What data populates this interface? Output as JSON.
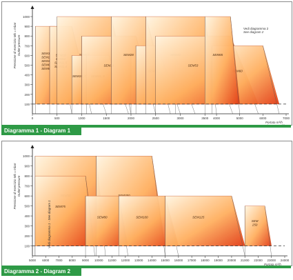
{
  "chart_data": [
    {
      "type": "area",
      "caption": "Diagramma 1 - Diagram 1",
      "ylabel_it": "Pressione di esercizio  Mb  =  mbar",
      "ylabel_en": "Outlet pressure",
      "xlabel_it": "Portata",
      "xlabel_en": "Flow rate",
      "xunit": "m³/h",
      "xlim": [
        0,
        7000
      ],
      "ylim": [
        0,
        1050
      ],
      "xticks": [
        0,
        500,
        1000,
        1500,
        2000,
        2500,
        3000,
        3500,
        4000,
        5000,
        6000,
        7000
      ],
      "yticks": [
        100,
        200,
        300,
        400,
        500,
        600,
        700,
        800,
        900,
        1000
      ],
      "reference_line": 100,
      "note_it": "Vedi diagramma 2",
      "note_en": "See diagram 2",
      "series": [
        {
          "name": "SEM1\nSEM2\nSEM4\nSEM6\nSEM8",
          "x_left": 60,
          "x_right": 480,
          "x_bottom": 800,
          "ymax": 900
        },
        {
          "name": "SEM10\nSEM11\nSEM11,5\nSEM11,6",
          "x_left": 350,
          "x_right": 800,
          "x_bottom": 1200,
          "ymax": 900
        },
        {
          "name": "SEM12",
          "x_left": 500,
          "x_right": 1600,
          "x_bottom": 2000,
          "ymax": 1000
        },
        {
          "name": "SEM15_7",
          "x_left": 800,
          "x_right": 1100,
          "x_bottom": 1500,
          "ymax": 600
        },
        {
          "name": "SEM15_9",
          "x_left": 1100,
          "x_right": 1550,
          "x_bottom": 1950,
          "ymax": 600
        },
        {
          "name": "SEM18",
          "x_left": 1000,
          "x_right": 2100,
          "x_bottom": 2500,
          "ymax": 800
        },
        {
          "name": "SEM20",
          "x_left": 2000,
          "x_right": 2600,
          "x_bottom": 3000,
          "ymax": 600
        },
        {
          "name": "SEM28",
          "x_left": 1600,
          "x_right": 2300,
          "x_bottom": 2800,
          "ymax": 1000
        },
        {
          "name": "SEM33",
          "x_left": 2100,
          "x_right": 2800,
          "x_bottom": 3300,
          "ymax": 700
        },
        {
          "name": "SEM41",
          "x_left": 2900,
          "x_right": 3800,
          "x_bottom": 4700,
          "ymax": 600
        },
        {
          "name": "SEM45",
          "x_left": 2300,
          "x_right": 3500,
          "x_bottom": 4000,
          "ymax": 1000
        },
        {
          "name": "SEM53",
          "x_left": 2500,
          "x_right": 4600,
          "x_bottom": 5800,
          "ymax": 800
        },
        {
          "name": "SEM60",
          "x_left": 3800,
          "x_right": 6000,
          "x_bottom": 6700,
          "ymax": 700
        },
        {
          "name": "SEM65",
          "x_left": 3500,
          "x_right": 4600,
          "x_bottom": 5000,
          "ymax": 1000
        }
      ]
    },
    {
      "type": "area",
      "caption": "Diagramma 2 - Diagram 2",
      "ylabel_it": "Pressione di esercizio  Mb  =  mbar",
      "ylabel_en": "Outlet pressure",
      "xlabel_it": "Portata",
      "xlabel_en": "Flow rate",
      "xunit": "m³/h",
      "xlim": [
        5000,
        24000
      ],
      "ylim": [
        0,
        1050
      ],
      "xticks": [
        5000,
        6000,
        7000,
        8000,
        9000,
        10000,
        11000,
        12000,
        13000,
        14000,
        15000,
        16000,
        17000,
        18000,
        19000,
        20000,
        21000,
        22000,
        23000,
        24000
      ],
      "yticks": [
        100,
        200,
        300,
        400,
        500,
        600,
        700,
        800,
        900,
        1000
      ],
      "reference_line": 100,
      "note_it": "Vedi diagramma 1",
      "note_en": "See diagram 1",
      "series": [
        {
          "name": "SEM50",
          "x_left": 5200,
          "x_right": 9800,
          "x_bottom": 10500,
          "ymax": 1000
        },
        {
          "name": "SEM350",
          "x_left": 9800,
          "x_right": 14000,
          "x_bottom": 15000,
          "ymax": 1000
        },
        {
          "name": "SEM75",
          "x_left": 5200,
          "x_right": 9000,
          "x_bottom": 9700,
          "ymax": 800
        },
        {
          "name": "SEM80",
          "x_left": 9000,
          "x_right": 11500,
          "x_bottom": 12200,
          "ymax": 600
        },
        {
          "name": "SEM100",
          "x_left": 11500,
          "x_right": 15000,
          "x_bottom": 16000,
          "ymax": 600
        },
        {
          "name": "SEM125",
          "x_left": 15000,
          "x_right": 20000,
          "x_bottom": 21000,
          "ymax": 600
        },
        {
          "name": "SEM\n250",
          "x_left": 21000,
          "x_right": 22500,
          "x_bottom": 23000,
          "ymax": 500
        }
      ]
    }
  ]
}
